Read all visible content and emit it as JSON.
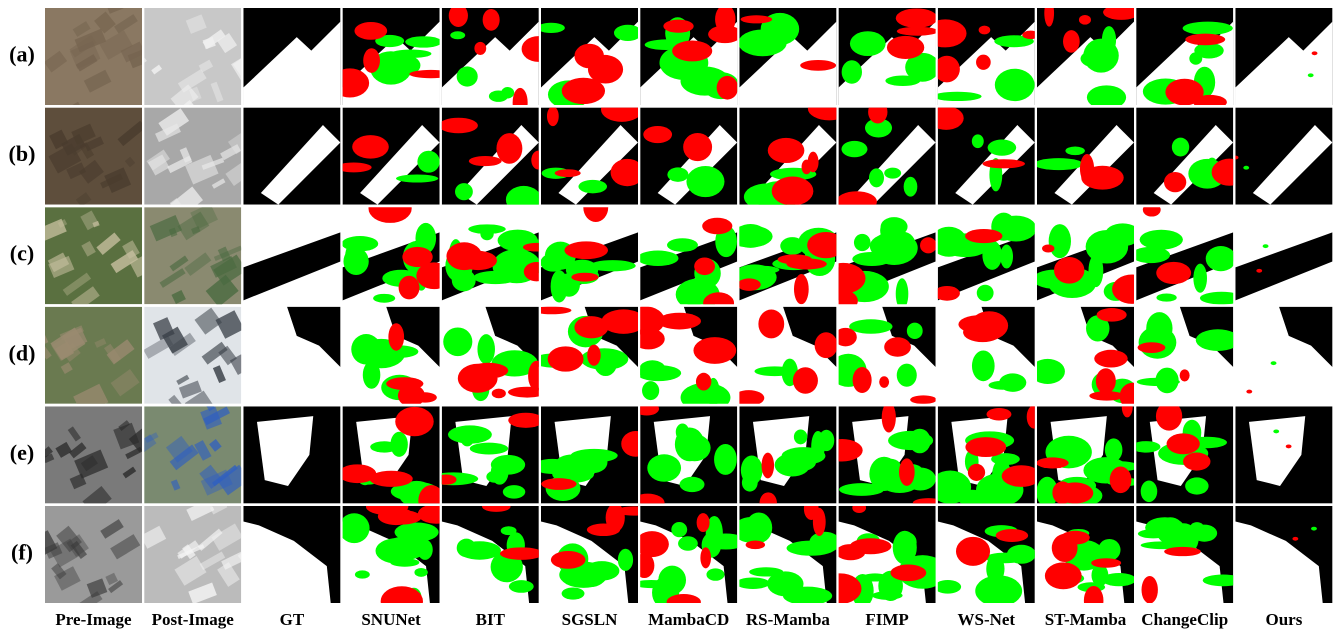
{
  "row_labels": [
    "(a)",
    "(b)",
    "(c)",
    "(d)",
    "(e)",
    "(f)"
  ],
  "column_labels": [
    "Pre-Image",
    "Post-Image",
    "GT",
    "SNUNet",
    "BIT",
    "SGSLN",
    "MambaCD",
    "RS-Mamba",
    "FIMP",
    "WS-Net",
    "ST-Mamba",
    "ChangeClip",
    "Ours"
  ]
}
